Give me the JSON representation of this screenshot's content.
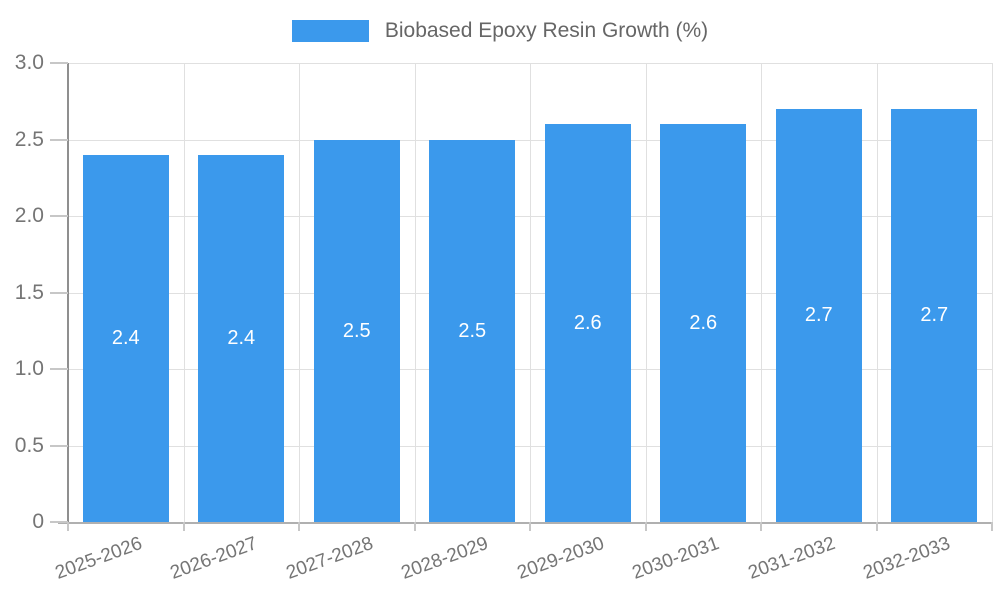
{
  "legend": {
    "label": "Biobased Epoxy Resin Growth (%)"
  },
  "chart_data": {
    "type": "bar",
    "title": "Biobased Epoxy Resin Growth (%)",
    "series_name": "Biobased Epoxy Resin Growth (%)",
    "categories": [
      "2025-2026",
      "2026-2027",
      "2027-2028",
      "2028-2029",
      "2029-2030",
      "2030-2031",
      "2031-2032",
      "2032-2033"
    ],
    "values": [
      2.4,
      2.4,
      2.5,
      2.5,
      2.6,
      2.6,
      2.7,
      2.7
    ],
    "bar_labels": [
      "2.4",
      "2.4",
      "2.5",
      "2.5",
      "2.6",
      "2.6",
      "2.7",
      "2.7"
    ],
    "xlabel": "",
    "ylabel": "",
    "ylim": [
      0,
      3
    ],
    "yticks": [
      0,
      0.5,
      1.0,
      1.5,
      2.0,
      2.5,
      3.0
    ],
    "ytick_labels": [
      "0",
      "0.5",
      "1.0",
      "1.5",
      "2.0",
      "2.5",
      "3.0"
    ],
    "x_label_rotation_deg": -20,
    "grid": true,
    "legend_position": "top-center",
    "colors": {
      "bar": "#3B99EC",
      "bar_value_text": "#ffffff",
      "grid": "#e0e0e0",
      "y_axis_line": "#8f8f8f",
      "x_axis_line": "#b0b0b0",
      "tick": "#c7c7c7",
      "axis_text": "#757575",
      "legend_text": "#666666"
    }
  }
}
